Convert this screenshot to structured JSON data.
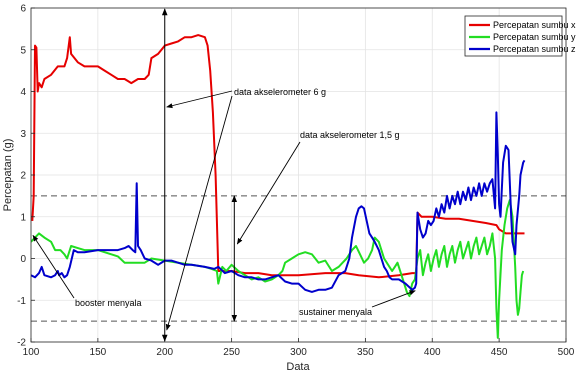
{
  "chart_data": {
    "type": "line",
    "xlabel": "Data",
    "ylabel": "Percepatan (g)",
    "xlim": [
      100,
      500
    ],
    "ylim": [
      -2,
      6
    ],
    "x_ticks": [
      100,
      150,
      200,
      250,
      300,
      350,
      400,
      450,
      500
    ],
    "y_ticks": [
      -2,
      -1,
      0,
      1,
      2,
      3,
      4,
      5,
      6
    ],
    "grid": true,
    "legend_position": "top-right",
    "series": [
      {
        "name": "Percepatan sumbu x",
        "color": "#e60000",
        "points": [
          [
            101,
            0.9
          ],
          [
            102,
            1.5
          ],
          [
            103,
            5.1
          ],
          [
            104,
            5.05
          ],
          [
            105,
            4.0
          ],
          [
            106,
            4.2
          ],
          [
            108,
            4.1
          ],
          [
            110,
            4.3
          ],
          [
            115,
            4.4
          ],
          [
            120,
            4.6
          ],
          [
            125,
            4.6
          ],
          [
            127,
            4.8
          ],
          [
            129,
            5.3
          ],
          [
            130,
            4.9
          ],
          [
            135,
            4.7
          ],
          [
            140,
            4.6
          ],
          [
            150,
            4.6
          ],
          [
            155,
            4.5
          ],
          [
            160,
            4.4
          ],
          [
            165,
            4.3
          ],
          [
            170,
            4.3
          ],
          [
            175,
            4.2
          ],
          [
            180,
            4.3
          ],
          [
            185,
            4.3
          ],
          [
            188,
            4.4
          ],
          [
            190,
            4.8
          ],
          [
            195,
            4.9
          ],
          [
            200,
            5.1
          ],
          [
            205,
            5.15
          ],
          [
            210,
            5.2
          ],
          [
            215,
            5.3
          ],
          [
            220,
            5.3
          ],
          [
            225,
            5.35
          ],
          [
            230,
            5.3
          ],
          [
            232,
            5.1
          ],
          [
            234,
            4.5
          ],
          [
            236,
            3.5
          ],
          [
            238,
            2.0
          ],
          [
            240,
            -0.3
          ],
          [
            250,
            -0.3
          ],
          [
            260,
            -0.35
          ],
          [
            270,
            -0.35
          ],
          [
            280,
            -0.4
          ],
          [
            300,
            -0.4
          ],
          [
            320,
            -0.35
          ],
          [
            335,
            -0.35
          ],
          [
            345,
            -0.4
          ],
          [
            360,
            -0.45
          ],
          [
            375,
            -0.4
          ],
          [
            385,
            -0.35
          ],
          [
            388,
            -0.35
          ],
          [
            389,
            1.1
          ],
          [
            392,
            1.0
          ],
          [
            395,
            1.0
          ],
          [
            400,
            1.0
          ],
          [
            410,
            0.95
          ],
          [
            420,
            0.95
          ],
          [
            430,
            0.9
          ],
          [
            440,
            0.85
          ],
          [
            448,
            0.8
          ],
          [
            450,
            0.7
          ],
          [
            455,
            0.6
          ],
          [
            460,
            0.6
          ],
          [
            465,
            0.6
          ],
          [
            469,
            0.6
          ]
        ]
      },
      {
        "name": "Percepatan sumbu y",
        "color": "#22dd22",
        "points": [
          [
            100,
            0.4
          ],
          [
            103,
            0.5
          ],
          [
            106,
            0.6
          ],
          [
            110,
            0.5
          ],
          [
            115,
            0.4
          ],
          [
            118,
            0.2
          ],
          [
            122,
            0.2
          ],
          [
            125,
            0.1
          ],
          [
            127,
            0.0
          ],
          [
            130,
            0.3
          ],
          [
            135,
            0.25
          ],
          [
            140,
            0.2
          ],
          [
            150,
            0.2
          ],
          [
            160,
            0.1
          ],
          [
            165,
            0.05
          ],
          [
            170,
            -0.1
          ],
          [
            180,
            -0.1
          ],
          [
            185,
            -0.1
          ],
          [
            190,
            0.0
          ],
          [
            200,
            -0.05
          ],
          [
            210,
            -0.1
          ],
          [
            220,
            -0.15
          ],
          [
            230,
            -0.2
          ],
          [
            235,
            -0.25
          ],
          [
            239,
            -0.3
          ],
          [
            240,
            -0.6
          ],
          [
            243,
            -0.2
          ],
          [
            246,
            -0.3
          ],
          [
            250,
            -0.15
          ],
          [
            255,
            -0.3
          ],
          [
            260,
            -0.4
          ],
          [
            265,
            -0.5
          ],
          [
            270,
            -0.45
          ],
          [
            275,
            -0.55
          ],
          [
            280,
            -0.5
          ],
          [
            285,
            -0.4
          ],
          [
            288,
            -0.3
          ],
          [
            290,
            -0.1
          ],
          [
            295,
            0.0
          ],
          [
            300,
            0.1
          ],
          [
            305,
            0.15
          ],
          [
            310,
            0.1
          ],
          [
            315,
            -0.1
          ],
          [
            320,
            -0.05
          ],
          [
            325,
            -0.3
          ],
          [
            330,
            -0.2
          ],
          [
            333,
            -0.1
          ],
          [
            336,
            0.0
          ],
          [
            340,
            0.2
          ],
          [
            343,
            0.3
          ],
          [
            346,
            0.1
          ],
          [
            349,
            -0.1
          ],
          [
            352,
            0.0
          ],
          [
            355,
            0.2
          ],
          [
            357,
            0.5
          ],
          [
            360,
            0.4
          ],
          [
            362,
            0.2
          ],
          [
            364,
            0.0
          ],
          [
            366,
            -0.1
          ],
          [
            368,
            -0.2
          ],
          [
            370,
            -0.3
          ],
          [
            372,
            -0.2
          ],
          [
            374,
            -0.1
          ],
          [
            377,
            -0.4
          ],
          [
            379,
            -0.6
          ],
          [
            381,
            -0.8
          ],
          [
            383,
            -0.9
          ],
          [
            385,
            -0.6
          ],
          [
            387,
            -0.5
          ],
          [
            389,
            0.0
          ],
          [
            391,
            0.2
          ],
          [
            393,
            -0.4
          ],
          [
            395,
            -0.1
          ],
          [
            397,
            0.1
          ],
          [
            399,
            -0.3
          ],
          [
            401,
            0.0
          ],
          [
            403,
            0.2
          ],
          [
            405,
            -0.2
          ],
          [
            407,
            0.1
          ],
          [
            409,
            0.3
          ],
          [
            411,
            -0.2
          ],
          [
            413,
            0.1
          ],
          [
            415,
            0.3
          ],
          [
            417,
            -0.1
          ],
          [
            419,
            0.2
          ],
          [
            421,
            0.4
          ],
          [
            423,
            0.0
          ],
          [
            425,
            0.2
          ],
          [
            427,
            0.4
          ],
          [
            429,
            0.0
          ],
          [
            431,
            0.3
          ],
          [
            433,
            0.5
          ],
          [
            435,
            0.1
          ],
          [
            437,
            0.3
          ],
          [
            439,
            0.5
          ],
          [
            441,
            0.1
          ],
          [
            443,
            0.3
          ],
          [
            445,
            0.6
          ],
          [
            447,
            0.0
          ],
          [
            448,
            -1.2
          ],
          [
            449,
            -1.9
          ],
          [
            450,
            -1.0
          ],
          [
            452,
            0.2
          ],
          [
            454,
            0.8
          ],
          [
            456,
            1.2
          ],
          [
            458,
            1.4
          ],
          [
            460,
            1.0
          ],
          [
            462,
            -0.2
          ],
          [
            463,
            -1.0
          ],
          [
            464,
            -1.35
          ],
          [
            465,
            -1.2
          ],
          [
            466,
            -0.8
          ],
          [
            467,
            -0.4
          ],
          [
            468,
            -0.3
          ]
        ]
      },
      {
        "name": "Percepatan sumbu z",
        "color": "#0000cc",
        "points": [
          [
            100,
            -0.4
          ],
          [
            103,
            -0.45
          ],
          [
            106,
            -0.35
          ],
          [
            108,
            -0.2
          ],
          [
            110,
            -0.4
          ],
          [
            115,
            -0.45
          ],
          [
            118,
            -0.4
          ],
          [
            120,
            -0.3
          ],
          [
            121,
            -0.4
          ],
          [
            123,
            -0.35
          ],
          [
            125,
            -0.45
          ],
          [
            127,
            -0.4
          ],
          [
            129,
            -0.2
          ],
          [
            132,
            0.2
          ],
          [
            135,
            0.15
          ],
          [
            140,
            0.15
          ],
          [
            150,
            0.2
          ],
          [
            160,
            0.2
          ],
          [
            165,
            0.2
          ],
          [
            170,
            0.25
          ],
          [
            173,
            0.3
          ],
          [
            176,
            0.2
          ],
          [
            178,
            0.15
          ],
          [
            179,
            1.8
          ],
          [
            180,
            0.3
          ],
          [
            182,
            0.2
          ],
          [
            185,
            0.0
          ],
          [
            190,
            -0.05
          ],
          [
            195,
            -0.15
          ],
          [
            200,
            -0.05
          ],
          [
            205,
            -0.05
          ],
          [
            210,
            -0.1
          ],
          [
            215,
            -0.15
          ],
          [
            220,
            -0.15
          ],
          [
            230,
            -0.2
          ],
          [
            237,
            -0.25
          ],
          [
            240,
            -0.2
          ],
          [
            245,
            -0.35
          ],
          [
            250,
            -0.3
          ],
          [
            255,
            -0.4
          ],
          [
            260,
            -0.45
          ],
          [
            265,
            -0.45
          ],
          [
            270,
            -0.5
          ],
          [
            275,
            -0.5
          ],
          [
            280,
            -0.45
          ],
          [
            285,
            -0.4
          ],
          [
            290,
            -0.55
          ],
          [
            295,
            -0.6
          ],
          [
            300,
            -0.6
          ],
          [
            305,
            -0.75
          ],
          [
            310,
            -0.8
          ],
          [
            315,
            -0.75
          ],
          [
            320,
            -0.75
          ],
          [
            325,
            -0.7
          ],
          [
            330,
            -0.4
          ],
          [
            335,
            -0.3
          ],
          [
            338,
            0.0
          ],
          [
            340,
            0.5
          ],
          [
            343,
            1.0
          ],
          [
            345,
            1.2
          ],
          [
            347,
            1.25
          ],
          [
            349,
            1.2
          ],
          [
            351,
            0.9
          ],
          [
            353,
            0.6
          ],
          [
            355,
            0.5
          ],
          [
            357,
            0.4
          ],
          [
            360,
            0.2
          ],
          [
            362,
            0.0
          ],
          [
            364,
            -0.2
          ],
          [
            366,
            -0.3
          ],
          [
            368,
            -0.45
          ],
          [
            370,
            -0.5
          ],
          [
            375,
            -0.5
          ],
          [
            380,
            -0.6
          ],
          [
            385,
            -0.75
          ],
          [
            387,
            -0.7
          ],
          [
            388,
            -0.6
          ],
          [
            389,
            1.1
          ],
          [
            391,
            0.7
          ],
          [
            393,
            0.5
          ],
          [
            395,
            0.6
          ],
          [
            397,
            0.9
          ],
          [
            399,
            0.8
          ],
          [
            401,
            0.9
          ],
          [
            403,
            1.2
          ],
          [
            405,
            1.0
          ],
          [
            407,
            1.3
          ],
          [
            409,
            1.1
          ],
          [
            411,
            1.5
          ],
          [
            413,
            1.2
          ],
          [
            415,
            1.5
          ],
          [
            417,
            1.3
          ],
          [
            419,
            1.6
          ],
          [
            421,
            1.3
          ],
          [
            423,
            1.6
          ],
          [
            425,
            1.4
          ],
          [
            427,
            1.7
          ],
          [
            429,
            1.4
          ],
          [
            431,
            1.7
          ],
          [
            433,
            1.5
          ],
          [
            435,
            1.8
          ],
          [
            437,
            1.5
          ],
          [
            439,
            1.8
          ],
          [
            441,
            1.6
          ],
          [
            443,
            1.8
          ],
          [
            445,
            1.9
          ],
          [
            447,
            1.2
          ],
          [
            448,
            3.5
          ],
          [
            449,
            2.5
          ],
          [
            450,
            1.3
          ],
          [
            451,
            1.0
          ],
          [
            453,
            2.3
          ],
          [
            455,
            2.7
          ],
          [
            457,
            2.6
          ],
          [
            459,
            1.0
          ],
          [
            460,
            0.4
          ],
          [
            462,
            0.1
          ],
          [
            463,
            0.8
          ],
          [
            465,
            1.5
          ],
          [
            466,
            2.0
          ],
          [
            468,
            2.3
          ],
          [
            469,
            2.35
          ]
        ]
      }
    ],
    "reference_lines": [
      {
        "y": 1.5,
        "style": "dashed",
        "color": "#555555"
      },
      {
        "y": -1.5,
        "style": "dashed",
        "color": "#555555"
      }
    ],
    "annotations": [
      {
        "text": "data akselerometer 6 g",
        "kind": "double-arrow",
        "x": 200,
        "y_from": -2,
        "y_to": 6
      },
      {
        "text": "data akselerometer 1,5 g",
        "kind": "double-arrow",
        "x": 252,
        "y_from": -1.5,
        "y_to": 1.5
      },
      {
        "text": "booster menyala",
        "kind": "arrow",
        "target": [
          100,
          0.6
        ]
      },
      {
        "text": "sustainer menyala",
        "kind": "arrow",
        "target": [
          388,
          -0.7
        ]
      }
    ]
  }
}
